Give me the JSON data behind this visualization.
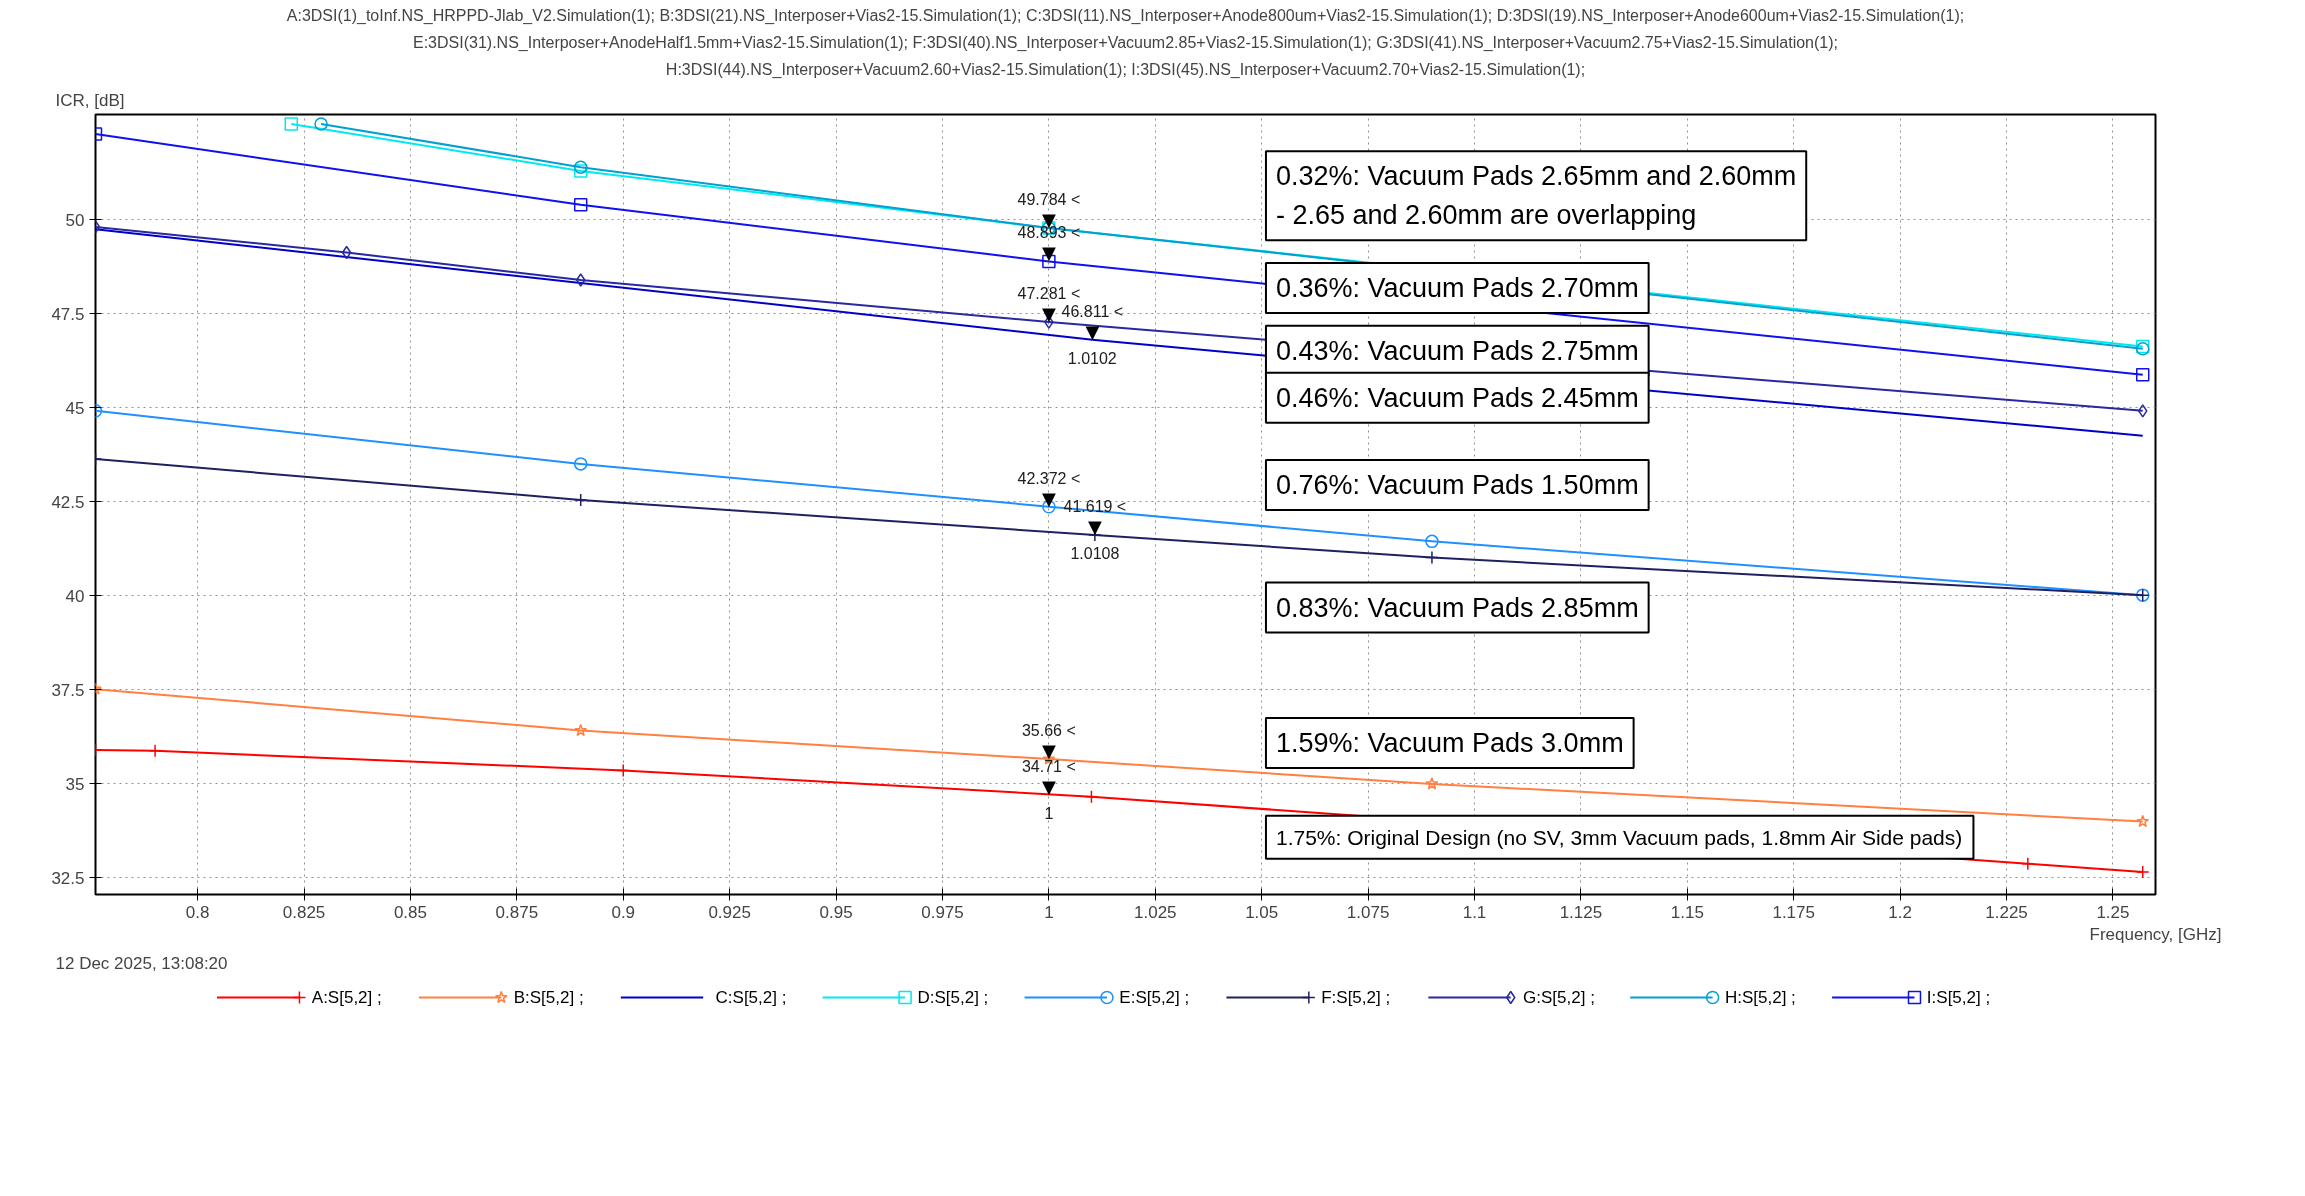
{
  "chart_data": {
    "type": "line",
    "title": "A:3DSI(1)_toInf.NS_HRPPD-Jlab_V2.Simulation(1); B:3DSI(21).NS_Interposer+Vias2-15.Simulation(1); C:3DSI(11).NS_Interposer+Anode800um+Vias2-15.Simulation(1); D:3DSI(19).NS_Interposer+Anode600um+Vias2-15.Simulation(1);\nE:3DSI(31).NS_Interposer+AnodeHalf1.5mm+Vias2-15.Simulation(1); F:3DSI(40).NS_Interposer+Vacuum2.85+Vias2-15.Simulation(1); G:3DSI(41).NS_Interposer+Vacuum2.75+Vias2-15.Simulation(1);\nH:3DSI(44).NS_Interposer+Vacuum2.60+Vias2-15.Simulation(1); I:3DSI(45).NS_Interposer+Vacuum2.70+Vias2-15.Simulation(1);",
    "ylabel": "ICR, [dB]",
    "xlabel": "Frequency, [GHz]",
    "xlim": [
      0.776,
      1.26
    ],
    "ylim": [
      32.06,
      52.8
    ],
    "xticks": [
      0.8,
      0.825,
      0.85,
      0.875,
      0.9,
      0.925,
      0.95,
      0.975,
      1,
      1.025,
      1.05,
      1.075,
      1.1,
      1.125,
      1.15,
      1.175,
      1.2,
      1.225,
      1.25
    ],
    "yticks": [
      32.5,
      35,
      37.5,
      40,
      42.5,
      45,
      47.5,
      50
    ],
    "grid": true,
    "legend": "bottom",
    "line_style": "solid",
    "series": [
      {
        "name": "A:S[5,2] ;",
        "color": "#ff0000",
        "marker": "cross",
        "x": [
          0.776,
          0.79,
          0.9,
          1.01,
          1.23,
          1.257
        ],
        "values": [
          35.9,
          35.88,
          35.36,
          34.66,
          32.88,
          32.66
        ]
      },
      {
        "name": "B:S[5,2] ;",
        "color": "#ff8040",
        "marker": "star",
        "x": [
          0.776,
          0.89,
          1.0,
          1.09,
          1.257
        ],
        "values": [
          37.52,
          36.42,
          35.66,
          35.0,
          34.0
        ]
      },
      {
        "name": "C:S[5,2] ;",
        "color": "#0000c8",
        "marker": "none",
        "x": [
          0.776,
          1.0102,
          1.257
        ],
        "values": [
          49.75,
          46.811,
          44.26
        ]
      },
      {
        "name": "D:S[5,2] ;",
        "color": "#00e8f0",
        "marker": "square",
        "x": [
          0.822,
          0.89,
          1.0,
          1.257
        ],
        "values": [
          52.55,
          51.3,
          49.784,
          46.63
        ]
      },
      {
        "name": "E:S[5,2] ;",
        "color": "#1e90ff",
        "marker": "circle",
        "x": [
          0.776,
          0.89,
          1.0,
          1.09,
          1.257
        ],
        "values": [
          44.92,
          43.51,
          42.372,
          41.45,
          40.02
        ]
      },
      {
        "name": "F:S[5,2] ;",
        "color": "#202060",
        "marker": "cross",
        "x": [
          0.776,
          0.89,
          1.0108,
          1.09,
          1.257
        ],
        "values": [
          43.64,
          42.55,
          41.619,
          41.02,
          40.02
        ]
      },
      {
        "name": "G:S[5,2] ;",
        "color": "#2828a0",
        "marker": "diamond",
        "x": [
          0.776,
          0.835,
          0.89,
          1.0,
          1.257
        ],
        "values": [
          49.81,
          49.13,
          48.4,
          47.281,
          44.92
        ]
      },
      {
        "name": "H:S[5,2] ;",
        "color": "#00a0d0",
        "marker": "circle",
        "x": [
          0.829,
          0.89,
          1.0,
          1.257
        ],
        "values": [
          52.55,
          51.4,
          49.784,
          46.57
        ]
      },
      {
        "name": "I:S[5,2] ;",
        "color": "#1010f0",
        "marker": "square",
        "x": [
          0.776,
          0.89,
          1.0,
          1.257
        ],
        "values": [
          52.28,
          50.4,
          48.893,
          45.88
        ]
      }
    ],
    "annotations": [
      {
        "text": "▼",
        "x": 1,
        "y": 49.784
      },
      {
        "text": "49.784 <",
        "x": 1,
        "y": 49.784
      },
      {
        "text": "▼",
        "x": 1,
        "y": 48.893
      },
      {
        "text": "48.893 <",
        "x": 1,
        "y": 48.893
      },
      {
        "text": "▼",
        "x": 1,
        "y": 47.281
      },
      {
        "text": "47.281 <",
        "x": 1,
        "y": 47.281
      },
      {
        "text": "▼",
        "x": 1.0102,
        "y": 46.811
      },
      {
        "text": "46.811 <",
        "x": 1.0102,
        "y": 46.811
      },
      {
        "text": "1.0102",
        "x": 1.0102,
        "y": 46.811
      },
      {
        "text": "▼",
        "x": 1,
        "y": 42.372
      },
      {
        "text": "42.372 <",
        "x": 1,
        "y": 42.372
      },
      {
        "text": "▼",
        "x": 1.0108,
        "y": 41.619
      },
      {
        "text": "41.619 <",
        "x": 1.0108,
        "y": 41.619
      },
      {
        "text": "1.0108",
        "x": 1.0108,
        "y": 41.619
      },
      {
        "text": "▼",
        "x": 1,
        "y": 35.66
      },
      {
        "text": "35.66 <",
        "x": 1,
        "y": 35.66
      },
      {
        "text": "▼",
        "x": 1,
        "y": 34.71
      },
      {
        "text": "34.71 <",
        "x": 1,
        "y": 34.71
      },
      {
        "text": "1",
        "x": 1,
        "y": 34.71
      },
      "0.32%: Vacuum Pads 2.65mm and 2.60mm\n- 2.65 and 2.60mm are overlapping",
      "0.36%: Vacuum Pads 2.70mm",
      "0.43%: Vacuum Pads 2.75mm",
      "0.46%: Vacuum Pads 2.45mm",
      "0.76%: Vacuum Pads 1.50mm",
      "0.83%: Vacuum Pads 2.85mm",
      "1.59%: Vacuum Pads 3.0mm",
      "1.75%: Original Design (no SV, 3mm Vacuum pads, 1.8mm Air Side pads)",
      "12 Dec 2025, 13:08:20"
    ]
  }
}
